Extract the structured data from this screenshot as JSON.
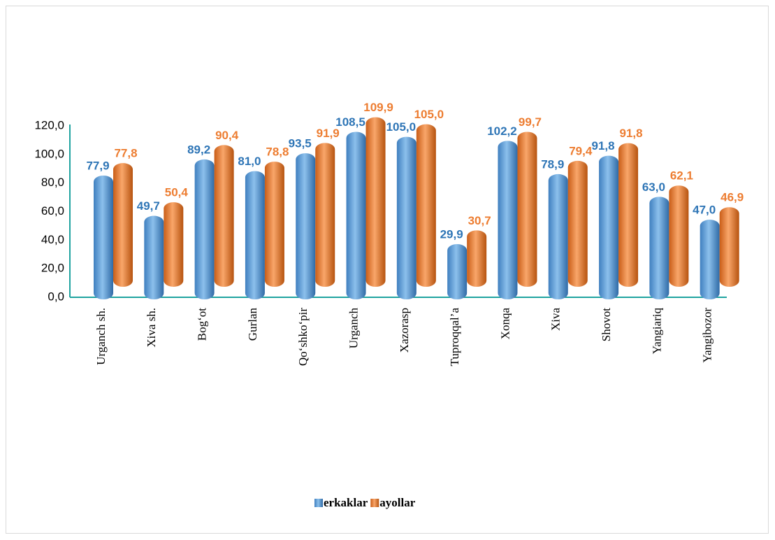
{
  "chart_data": {
    "type": "bar",
    "categories": [
      "Urganch sh.",
      "Xiva sh.",
      "Bog‘ot",
      "Gurlan",
      "Qo‘shko‘pir",
      "Urganch",
      "Xazorasp",
      "Tuproqqal’a",
      "Xonqa",
      "Xiva",
      "Shovot",
      "Yangiariq",
      "Yangibozor"
    ],
    "series": [
      {
        "name": "erkaklar",
        "color": "#5b9bd5",
        "label_color": "#2e75b6",
        "values": [
          77.9,
          49.7,
          89.2,
          81.0,
          93.5,
          108.5,
          105.0,
          29.9,
          102.2,
          78.9,
          91.8,
          63.0,
          47.0
        ],
        "value_labels": [
          "77,9",
          "49,7",
          "89,2",
          "81,0",
          "93,5",
          "108,5",
          "105,0",
          "29,9",
          "102,2",
          "78,9",
          "91,8",
          "63,0",
          "47,0"
        ]
      },
      {
        "name": "ayollar",
        "color": "#ed7d31",
        "label_color": "#ed7d31",
        "values": [
          77.8,
          50.4,
          90.4,
          78.8,
          91.9,
          109.9,
          105.0,
          30.7,
          99.7,
          79.4,
          91.8,
          62.1,
          46.9
        ],
        "value_labels": [
          "77,8",
          "50,4",
          "90,4",
          "78,8",
          "91,9",
          "109,9",
          "105,0",
          "30,7",
          "99,7",
          "79,4",
          "91,8",
          "62,1",
          "46,9"
        ]
      }
    ],
    "ylim": [
      0,
      120
    ],
    "yticks": [
      {
        "value": 0,
        "label": "0,0"
      },
      {
        "value": 20,
        "label": "20,0"
      },
      {
        "value": 40,
        "label": "40,0"
      },
      {
        "value": 60,
        "label": "60,0"
      },
      {
        "value": 80,
        "label": "80,0"
      },
      {
        "value": 100,
        "label": "100,0"
      },
      {
        "value": 120,
        "label": "120,0"
      }
    ],
    "grid": false,
    "legend": "bottom"
  }
}
